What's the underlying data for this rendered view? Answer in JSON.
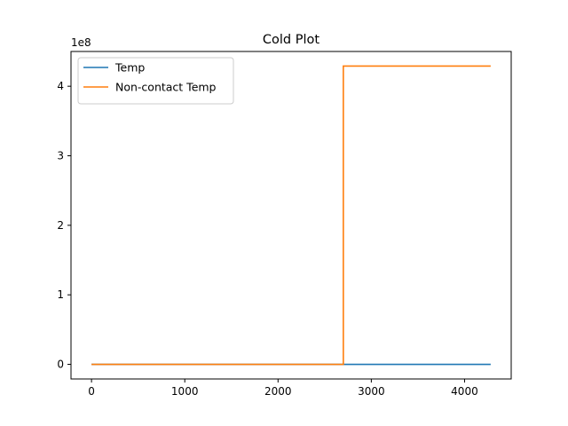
{
  "chart_data": {
    "type": "line",
    "title": "Cold Plot",
    "xlabel": "",
    "ylabel": "",
    "y_offset_label": "1e8",
    "y_scale": 100000000,
    "xlim": [
      -220,
      4500
    ],
    "ylim": [
      -0.21,
      4.5
    ],
    "x_ticks": [
      0,
      1000,
      2000,
      3000,
      4000
    ],
    "x_tick_labels": [
      "0",
      "1000",
      "2000",
      "3000",
      "4000"
    ],
    "y_ticks": [
      0,
      1,
      2,
      3,
      4
    ],
    "y_tick_labels": [
      "0",
      "1",
      "2",
      "3",
      "4"
    ],
    "grid": false,
    "legend_position": "upper-left",
    "series": [
      {
        "name": "Temp",
        "color": "#1f77b4",
        "x": [
          0,
          4280
        ],
        "y": [
          0,
          0
        ]
      },
      {
        "name": "Non-contact Temp",
        "color": "#ff7f0e",
        "x": [
          0,
          2700,
          2700,
          4280
        ],
        "y": [
          0,
          0,
          4.29,
          4.29
        ]
      }
    ]
  }
}
